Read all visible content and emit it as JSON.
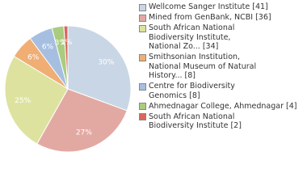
{
  "chart_data": {
    "type": "pie",
    "series": [
      {
        "name": "Wellcome Sanger Institute [41]",
        "color": "#c9d6e5",
        "values": [
          30
        ]
      },
      {
        "name": "Mined from GenBank, NCBI [36]",
        "color": "#e2a9a3",
        "values": [
          27
        ]
      },
      {
        "name": "South African National\nBiodiversity Institute,\nNational Zo... [34]",
        "color": "#dde39f",
        "values": [
          25
        ]
      },
      {
        "name": "Smithsonian Institution,\nNational Museum of Natural\nHistory... [8]",
        "color": "#f0ae74",
        "values": [
          6
        ]
      },
      {
        "name": "Centre for Biodiversity\nGenomics [8]",
        "color": "#a6bfe1",
        "values": [
          6
        ]
      },
      {
        "name": "Ahmednagar College, Ahmednagar [4]",
        "color": "#a9cc80",
        "values": [
          3
        ]
      },
      {
        "name": "South African National\nBiodiversity Institute [2]",
        "color": "#d9675b",
        "values": [
          1
        ]
      }
    ]
  }
}
